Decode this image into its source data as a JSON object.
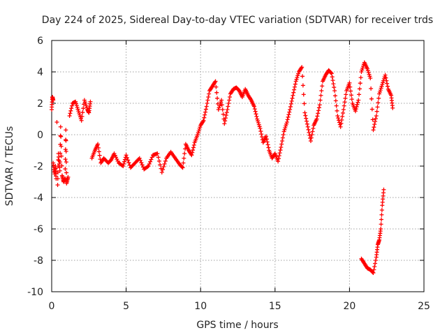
{
  "chart_data": {
    "type": "scatter",
    "title": "Day 224 of 2025, Sidereal Day-to-day VTEC variation (SDTVAR) for receiver trds",
    "xlabel": "GPS time / hours",
    "ylabel": "SDTVAR / TECUs",
    "xlim": [
      0,
      25
    ],
    "ylim": [
      -10,
      6
    ],
    "xticks": [
      0,
      5,
      10,
      15,
      20,
      25
    ],
    "yticks": [
      -10,
      -8,
      -6,
      -4,
      -2,
      0,
      2,
      4,
      6
    ],
    "grid": true,
    "marker": "+",
    "series": [
      {
        "name": "SDTVAR",
        "color": "#ff0000",
        "points": [
          [
            0.0,
            1.6
          ],
          [
            0.05,
            2.4
          ],
          [
            0.1,
            2.2
          ],
          [
            0.1,
            -1.8
          ],
          [
            0.2,
            -2.5
          ],
          [
            0.25,
            -2.0
          ],
          [
            0.3,
            -2.8
          ],
          [
            0.35,
            0.8
          ],
          [
            0.4,
            -3.2
          ],
          [
            0.45,
            -1.2
          ],
          [
            0.55,
            -2.3
          ],
          [
            0.6,
            0.5
          ],
          [
            0.7,
            -2.6
          ],
          [
            0.8,
            -3.0
          ],
          [
            0.9,
            -2.8
          ],
          [
            0.95,
            0.3
          ],
          [
            1.0,
            -3.1
          ],
          [
            1.1,
            -2.7
          ],
          [
            1.2,
            1.2
          ],
          [
            1.4,
            2.0
          ],
          [
            1.6,
            2.1
          ],
          [
            1.8,
            1.5
          ],
          [
            2.0,
            0.9
          ],
          [
            2.2,
            2.2
          ],
          [
            2.4,
            1.6
          ],
          [
            2.5,
            1.4
          ],
          [
            2.6,
            2.1
          ],
          [
            2.7,
            -1.5
          ],
          [
            2.9,
            -1.0
          ],
          [
            3.1,
            -0.6
          ],
          [
            3.3,
            -1.8
          ],
          [
            3.5,
            -1.5
          ],
          [
            3.8,
            -1.8
          ],
          [
            4.0,
            -1.6
          ],
          [
            4.2,
            -1.2
          ],
          [
            4.5,
            -1.8
          ],
          [
            4.8,
            -2.0
          ],
          [
            5.0,
            -1.3
          ],
          [
            5.3,
            -2.1
          ],
          [
            5.6,
            -1.8
          ],
          [
            5.9,
            -1.5
          ],
          [
            6.2,
            -2.2
          ],
          [
            6.5,
            -2.0
          ],
          [
            6.8,
            -1.3
          ],
          [
            7.1,
            -1.2
          ],
          [
            7.4,
            -2.4
          ],
          [
            7.7,
            -1.5
          ],
          [
            8.0,
            -1.1
          ],
          [
            8.3,
            -1.5
          ],
          [
            8.6,
            -1.9
          ],
          [
            8.8,
            -2.1
          ],
          [
            9.0,
            -0.6
          ],
          [
            9.2,
            -1.0
          ],
          [
            9.4,
            -1.3
          ],
          [
            9.6,
            -0.5
          ],
          [
            9.8,
            0.0
          ],
          [
            10.0,
            0.6
          ],
          [
            10.2,
            0.9
          ],
          [
            10.4,
            1.8
          ],
          [
            10.6,
            2.8
          ],
          [
            10.8,
            3.1
          ],
          [
            11.0,
            3.4
          ],
          [
            11.2,
            1.6
          ],
          [
            11.4,
            2.2
          ],
          [
            11.6,
            0.7
          ],
          [
            11.8,
            1.6
          ],
          [
            12.0,
            2.6
          ],
          [
            12.2,
            2.9
          ],
          [
            12.4,
            3.0
          ],
          [
            12.6,
            2.8
          ],
          [
            12.8,
            2.4
          ],
          [
            13.0,
            2.9
          ],
          [
            13.2,
            2.5
          ],
          [
            13.4,
            2.2
          ],
          [
            13.6,
            1.8
          ],
          [
            13.8,
            1.0
          ],
          [
            14.0,
            0.4
          ],
          [
            14.2,
            -0.5
          ],
          [
            14.4,
            -0.1
          ],
          [
            14.6,
            -1.0
          ],
          [
            14.8,
            -1.5
          ],
          [
            15.0,
            -1.2
          ],
          [
            15.2,
            -1.7
          ],
          [
            15.4,
            -0.8
          ],
          [
            15.6,
            0.2
          ],
          [
            15.8,
            0.8
          ],
          [
            16.0,
            1.6
          ],
          [
            16.2,
            2.5
          ],
          [
            16.4,
            3.4
          ],
          [
            16.6,
            4.0
          ],
          [
            16.8,
            4.3
          ],
          [
            17.0,
            1.4
          ],
          [
            17.2,
            0.5
          ],
          [
            17.4,
            -0.4
          ],
          [
            17.6,
            0.6
          ],
          [
            17.8,
            1.0
          ],
          [
            18.0,
            1.9
          ],
          [
            18.2,
            3.4
          ],
          [
            18.4,
            3.8
          ],
          [
            18.6,
            4.1
          ],
          [
            18.8,
            3.9
          ],
          [
            19.0,
            2.8
          ],
          [
            19.2,
            1.2
          ],
          [
            19.4,
            0.5
          ],
          [
            19.6,
            1.6
          ],
          [
            19.8,
            2.8
          ],
          [
            20.0,
            3.3
          ],
          [
            20.2,
            2.0
          ],
          [
            20.4,
            1.5
          ],
          [
            20.6,
            2.2
          ],
          [
            20.8,
            4.0
          ],
          [
            21.0,
            4.6
          ],
          [
            21.2,
            4.2
          ],
          [
            21.4,
            3.6
          ],
          [
            21.6,
            0.3
          ],
          [
            21.8,
            1.2
          ],
          [
            22.0,
            2.6
          ],
          [
            22.2,
            3.2
          ],
          [
            22.4,
            3.8
          ],
          [
            22.6,
            2.9
          ],
          [
            22.8,
            2.5
          ],
          [
            22.9,
            1.7
          ],
          [
            20.8,
            -7.9
          ],
          [
            21.0,
            -8.2
          ],
          [
            21.2,
            -8.5
          ],
          [
            21.4,
            -8.6
          ],
          [
            21.6,
            -8.8
          ],
          [
            21.8,
            -7.8
          ],
          [
            21.9,
            -7.0
          ],
          [
            22.0,
            -6.7
          ],
          [
            22.1,
            -6.0
          ],
          [
            22.2,
            -4.5
          ],
          [
            22.3,
            -3.5
          ]
        ]
      }
    ]
  }
}
